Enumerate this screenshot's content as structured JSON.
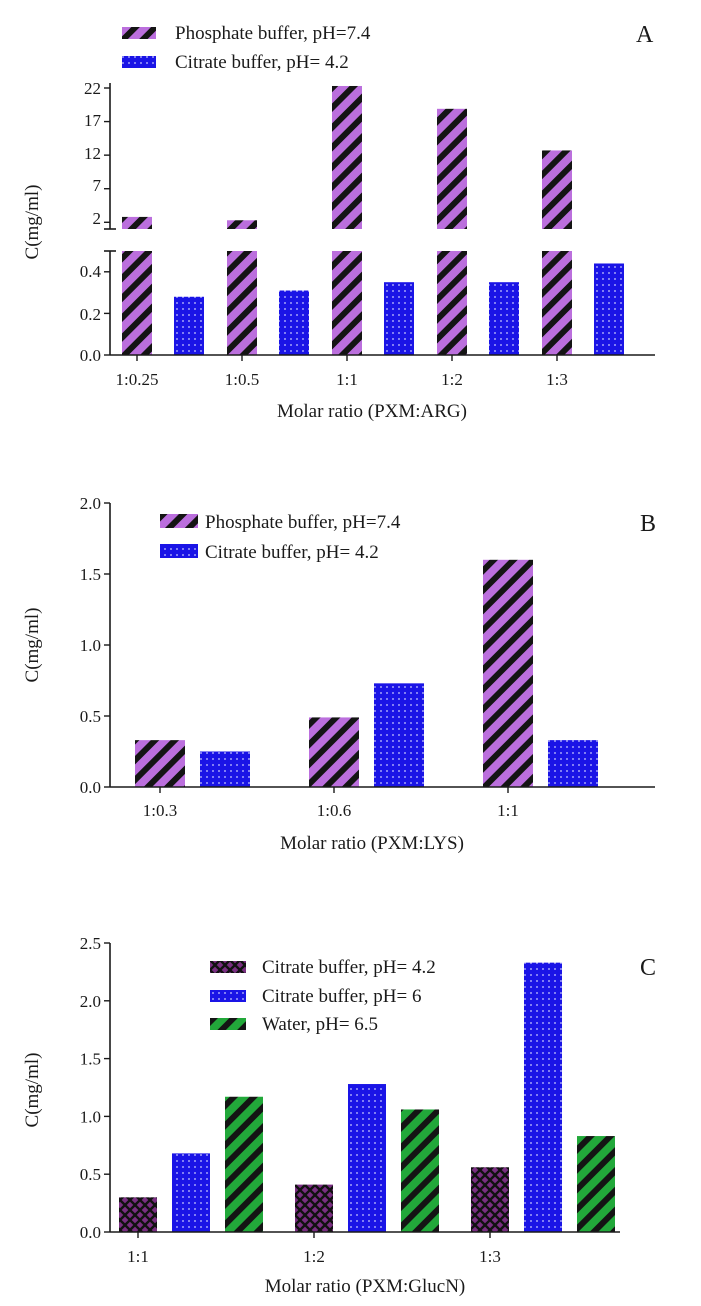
{
  "chart_data": [
    {
      "panel": "A",
      "type": "bar",
      "categories": [
        "1:0.25",
        "1:0.5",
        "1:1",
        "1:2",
        "1:3"
      ],
      "series": [
        {
          "name": "Phosphate buffer, pH=7.4",
          "values": [
            2.8,
            2.3,
            22.3,
            18.9,
            12.7
          ]
        },
        {
          "name": "Citrate buffer, pH= 4.2",
          "values": [
            0.28,
            0.31,
            0.35,
            0.35,
            0.44
          ]
        }
      ],
      "xlabel": "Molar ratio (PXM:ARG)",
      "ylabel": "C(mg/ml)",
      "broken_axis": true,
      "lower_segment": {
        "ylim": [
          0,
          0.5
        ],
        "ticks": [
          "0.0",
          "0.2",
          "0.4"
        ]
      },
      "upper_segment": {
        "ylim": [
          1,
          23
        ],
        "ticks": [
          "2",
          "7",
          "12",
          "17",
          "22"
        ]
      },
      "legend_position": "top-left"
    },
    {
      "panel": "B",
      "type": "bar",
      "categories": [
        "1:0.3",
        "1:0.6",
        "1:1"
      ],
      "series": [
        {
          "name": "Phosphate buffer, pH=7.4",
          "values": [
            0.33,
            0.49,
            1.6
          ]
        },
        {
          "name": "Citrate buffer, pH= 4.2",
          "values": [
            0.25,
            0.73,
            0.33
          ]
        }
      ],
      "xlabel": "Molar ratio (PXM:LYS)",
      "ylabel": "C(mg/ml)",
      "ylim": [
        0,
        2.0
      ],
      "ticks": [
        "0.0",
        "0.5",
        "1.0",
        "1.5",
        "2.0"
      ],
      "legend_position": "top-left"
    },
    {
      "panel": "C",
      "type": "bar",
      "categories": [
        "1:1",
        "1:2",
        "1:3"
      ],
      "series": [
        {
          "name": "Citrate buffer, pH= 4.2",
          "values": [
            0.3,
            0.41,
            0.56
          ]
        },
        {
          "name": "Citrate buffer, pH= 6",
          "values": [
            0.68,
            1.28,
            2.33
          ]
        },
        {
          "name": "Water, pH= 6.5",
          "values": [
            1.17,
            1.06,
            0.83
          ]
        }
      ],
      "xlabel": "Molar ratio (PXM:GlucN)",
      "ylabel": "C(mg/ml)",
      "ylim": [
        0,
        2.5
      ],
      "ticks": [
        "0.0",
        "0.5",
        "1.0",
        "1.5",
        "2.0",
        "2.5"
      ],
      "legend_position": "top-left"
    }
  ],
  "colors": {
    "purple": "#bb6fdd",
    "purple_dark": "#7a2f82",
    "blue": "#1a14e6",
    "green": "#22a83a",
    "stripe": "#141414",
    "axis": "#1a1a1a"
  }
}
